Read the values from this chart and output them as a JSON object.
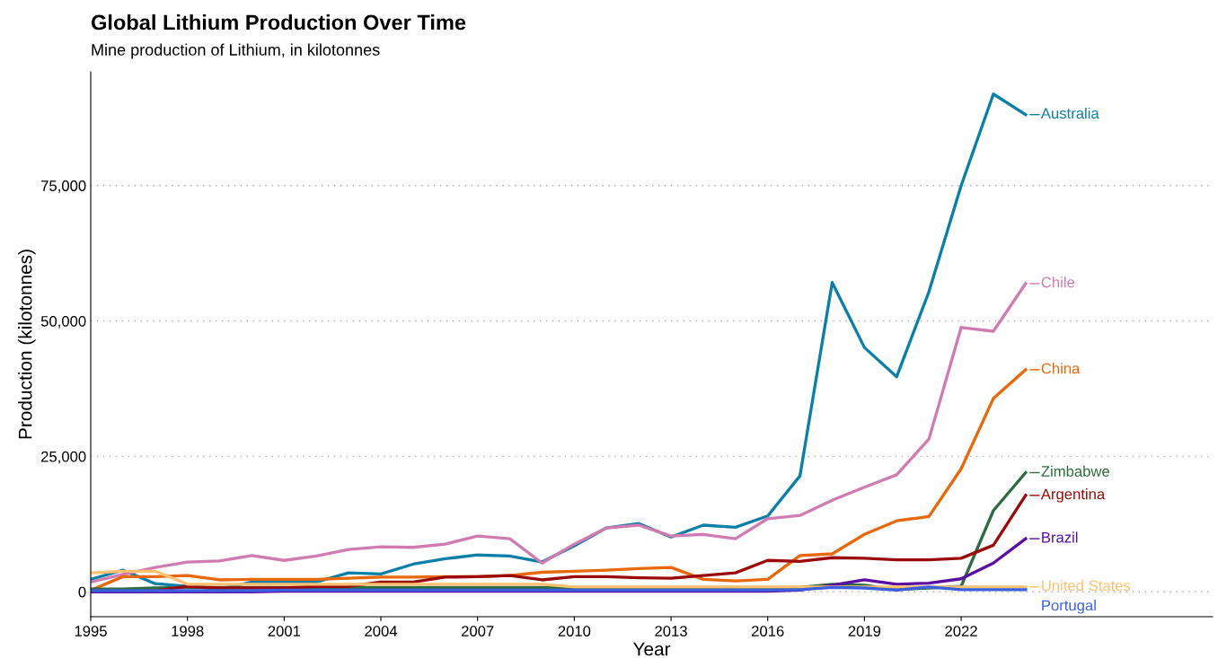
{
  "chart_data": {
    "type": "line",
    "title": "Global Lithium Production Over Time",
    "subtitle": "Mine production of Lithium, in kilotonnes",
    "xlabel": "Year",
    "ylabel": "Production (kilotonnes)",
    "x": [
      1995,
      1996,
      1997,
      1998,
      1999,
      2000,
      2001,
      2002,
      2003,
      2004,
      2005,
      2006,
      2007,
      2008,
      2009,
      2010,
      2011,
      2012,
      2013,
      2014,
      2015,
      2016,
      2017,
      2018,
      2019,
      2020,
      2021,
      2022,
      2023,
      2024
    ],
    "series": [
      {
        "name": "Australia",
        "color": "#0a7fa8",
        "values": [
          2300,
          4000,
          1500,
          1000,
          500,
          1800,
          1800,
          1800,
          3500,
          3300,
          5100,
          6100,
          6800,
          6600,
          5500,
          8500,
          11800,
          12600,
          10100,
          12300,
          11900,
          14000,
          21400,
          57100,
          45100,
          39700,
          55400,
          75000,
          91900,
          88100
        ]
      },
      {
        "name": "Chile",
        "color": "#d07cb0",
        "values": [
          1800,
          3200,
          4500,
          5500,
          5700,
          6700,
          5800,
          6600,
          7800,
          8300,
          8200,
          8800,
          10300,
          9800,
          5300,
          8800,
          11800,
          12300,
          10300,
          10600,
          9800,
          13500,
          14100,
          16900,
          19300,
          21600,
          28200,
          48800,
          48100,
          56900
        ]
      },
      {
        "name": "China",
        "color": "#e8680c",
        "values": [
          300,
          2800,
          2800,
          3000,
          2200,
          2300,
          2300,
          2300,
          2500,
          2700,
          2700,
          2800,
          2800,
          3000,
          3600,
          3800,
          4000,
          4300,
          4500,
          2300,
          2000,
          2300,
          6700,
          7000,
          10600,
          13100,
          13900,
          22700,
          35700,
          41000
        ]
      },
      {
        "name": "Zimbabwe",
        "color": "#2e6b3e",
        "values": [
          500,
          500,
          700,
          800,
          800,
          800,
          800,
          800,
          800,
          800,
          800,
          800,
          800,
          800,
          800,
          800,
          800,
          800,
          800,
          800,
          800,
          800,
          800,
          1400,
          1200,
          400,
          700,
          1000,
          15000,
          22000
        ]
      },
      {
        "name": "Argentina",
        "color": "#9a0a0a",
        "values": [
          0,
          0,
          200,
          1000,
          700,
          700,
          700,
          1000,
          1000,
          1800,
          1800,
          2700,
          2800,
          3000,
          2200,
          2800,
          2800,
          2600,
          2500,
          3000,
          3500,
          5800,
          5600,
          6300,
          6200,
          5900,
          5900,
          6200,
          8600,
          17800
        ]
      },
      {
        "name": "Brazil",
        "color": "#5a0fa0",
        "values": [
          0,
          0,
          0,
          0,
          0,
          0,
          100,
          100,
          100,
          100,
          100,
          100,
          100,
          100,
          100,
          100,
          100,
          100,
          100,
          100,
          100,
          100,
          300,
          1200,
          2200,
          1400,
          1600,
          2400,
          5300,
          9800
        ]
      },
      {
        "name": "United States",
        "color": "#ffc070",
        "values": [
          3500,
          3800,
          3800,
          1400,
          1400,
          1400,
          1400,
          1400,
          1400,
          1400,
          1400,
          1400,
          1400,
          1400,
          1400,
          900,
          900,
          900,
          900,
          900,
          900,
          900,
          900,
          900,
          900,
          900,
          900,
          900,
          900,
          900
        ]
      },
      {
        "name": "Portugal",
        "color": "#3a60e0",
        "values": [
          200,
          200,
          200,
          200,
          200,
          200,
          300,
          300,
          300,
          300,
          300,
          300,
          300,
          300,
          300,
          300,
          300,
          300,
          300,
          300,
          300,
          300,
          400,
          800,
          700,
          300,
          900,
          400,
          400,
          400
        ]
      }
    ],
    "xlim": [
      1995,
      2029.8
    ],
    "ylim": [
      -4600,
      96000
    ],
    "xticks": [
      1995,
      1998,
      2001,
      2004,
      2007,
      2010,
      2013,
      2016,
      2019,
      2022
    ],
    "yticks": [
      {
        "value": 0,
        "label": "0"
      },
      {
        "value": 25000,
        "label": "25,000"
      },
      {
        "value": 50000,
        "label": "50,000"
      },
      {
        "value": 75000,
        "label": "75,000"
      }
    ],
    "grid": "y",
    "legend": "right",
    "line_style": "solid",
    "marker": "none"
  }
}
